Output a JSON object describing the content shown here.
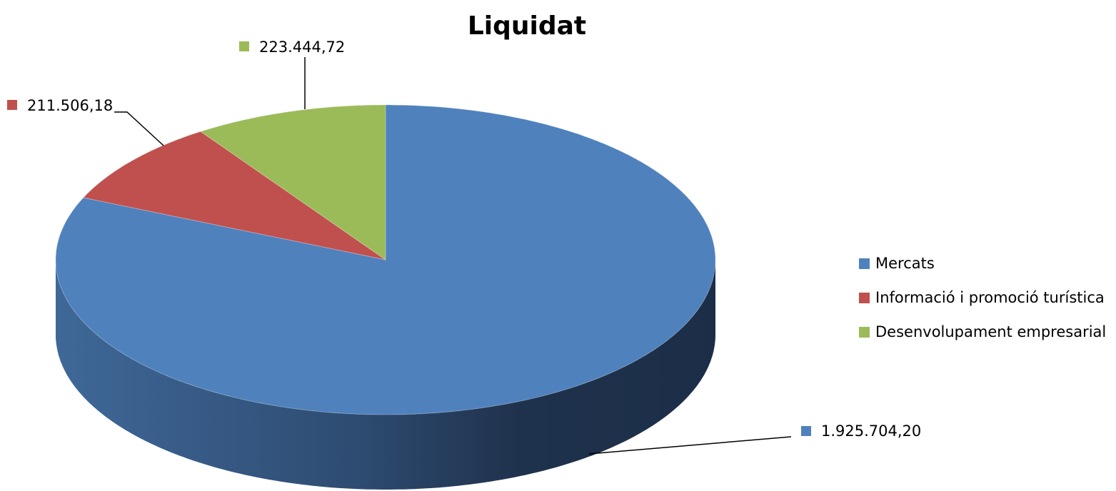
{
  "chart_data": {
    "type": "pie",
    "title": "Liquidat",
    "categories": [
      "Mercats",
      "Informació i promoció turística",
      "Desenvolupament empresarial"
    ],
    "values": [
      1925704.2,
      211506.18,
      223444.72
    ],
    "value_labels": [
      "1.925.704,20",
      "211.506,18",
      "223.444,72"
    ],
    "colors": [
      "#4f81bd",
      "#c0504d",
      "#9bbb59"
    ],
    "legend": "right"
  }
}
